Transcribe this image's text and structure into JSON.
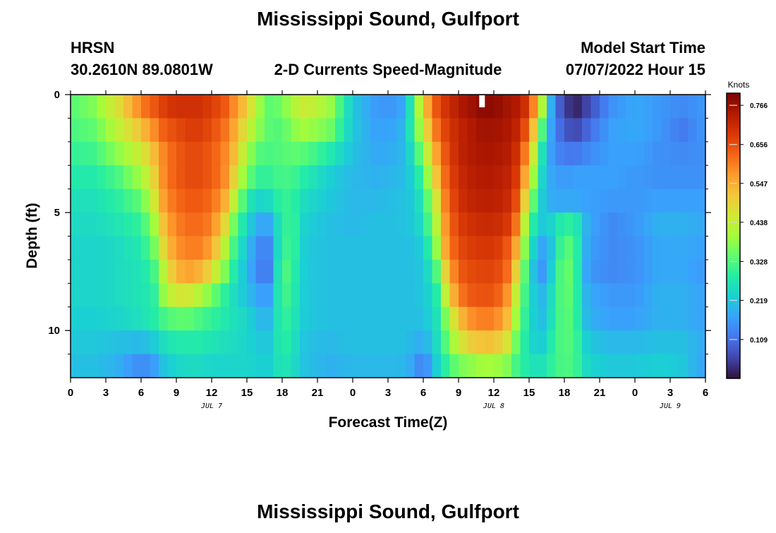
{
  "title": "Mississippi Sound, Gulfport",
  "bottom_title": "Mississippi Sound, Gulfport",
  "station_id": "HRSN",
  "location": "30.2610N  89.0801W",
  "plot_title": "2-D Currents Speed-Magnitude",
  "model_start_label": "Model Start Time",
  "model_start_value": "07/07/2022 Hour 15",
  "colors": {
    "scale": [
      "#30123b",
      "#4145ab",
      "#4675ed",
      "#39a2fc",
      "#1bcfd4",
      "#24eca6",
      "#61fc6c",
      "#a4fc3b",
      "#d1e834",
      "#f3c63a",
      "#fe9b2d",
      "#f36315",
      "#d93806",
      "#b11901",
      "#7a0403"
    ],
    "marker": "#ffffff"
  },
  "chart_data": {
    "type": "heatmap",
    "title": "2-D Currents Speed-Magnitude",
    "xlabel": "Forecast Time(Z)",
    "ylabel": "Depth (ft)",
    "xlim": [
      0,
      54
    ],
    "ylim": [
      0,
      12
    ],
    "x_ticks": [
      {
        "value": 0,
        "label": "0"
      },
      {
        "value": 3,
        "label": "3"
      },
      {
        "value": 6,
        "label": "6"
      },
      {
        "value": 9,
        "label": "9"
      },
      {
        "value": 12,
        "label": "12"
      },
      {
        "value": 15,
        "label": "15"
      },
      {
        "value": 18,
        "label": "18"
      },
      {
        "value": 21,
        "label": "21"
      },
      {
        "value": 24,
        "label": "0"
      },
      {
        "value": 27,
        "label": "3"
      },
      {
        "value": 30,
        "label": "6"
      },
      {
        "value": 33,
        "label": "9"
      },
      {
        "value": 36,
        "label": "12"
      },
      {
        "value": 39,
        "label": "15"
      },
      {
        "value": 42,
        "label": "18"
      },
      {
        "value": 45,
        "label": "21"
      },
      {
        "value": 48,
        "label": "0"
      },
      {
        "value": 51,
        "label": "3"
      },
      {
        "value": 54,
        "label": "6"
      }
    ],
    "y_ticks": [
      {
        "value": 0,
        "label": "0"
      },
      {
        "value": 5,
        "label": "5"
      },
      {
        "value": 10,
        "label": "10"
      }
    ],
    "day_labels": [
      {
        "value": 12,
        "label": "JUL 7"
      },
      {
        "value": 36,
        "label": "JUL 8"
      },
      {
        "value": 51,
        "label": "JUL 9"
      }
    ],
    "colorbar": {
      "label": "Knots",
      "min": 0.0,
      "max": 0.8,
      "ticks": [
        "0.766",
        "0.656",
        "0.547",
        "0.438",
        "0.328",
        "0.219",
        "0.109"
      ]
    },
    "current_time_marker": 35,
    "depths": [
      0.5,
      1.5,
      2.5,
      3.5,
      4.5,
      5.5,
      6.5,
      7.5,
      8.5,
      9.5,
      10.5,
      11.5
    ],
    "times": [
      0,
      2,
      4,
      6,
      7,
      8,
      9,
      10,
      11,
      12,
      13,
      14,
      15,
      16,
      17,
      18,
      19,
      20,
      22,
      24,
      26,
      28,
      29,
      30,
      31,
      32,
      33,
      34,
      35,
      36,
      37,
      38,
      39,
      40,
      41,
      42,
      43,
      44,
      46,
      48,
      50,
      52,
      54
    ],
    "rows": [
      [
        0.33,
        0.37,
        0.47,
        0.6,
        0.64,
        0.68,
        0.7,
        0.7,
        0.7,
        0.68,
        0.65,
        0.58,
        0.5,
        0.4,
        0.33,
        0.36,
        0.42,
        0.45,
        0.4,
        0.22,
        0.16,
        0.16,
        0.28,
        0.5,
        0.64,
        0.7,
        0.74,
        0.76,
        0.78,
        0.78,
        0.76,
        0.74,
        0.68,
        0.45,
        0.15,
        0.05,
        0.02,
        0.06,
        0.15,
        0.18,
        0.16,
        0.14,
        0.16
      ],
      [
        0.32,
        0.34,
        0.43,
        0.52,
        0.58,
        0.64,
        0.66,
        0.68,
        0.68,
        0.66,
        0.62,
        0.55,
        0.45,
        0.38,
        0.33,
        0.33,
        0.38,
        0.4,
        0.36,
        0.22,
        0.17,
        0.18,
        0.28,
        0.45,
        0.6,
        0.68,
        0.72,
        0.74,
        0.76,
        0.76,
        0.75,
        0.72,
        0.62,
        0.35,
        0.15,
        0.08,
        0.06,
        0.1,
        0.17,
        0.18,
        0.16,
        0.12,
        0.16
      ],
      [
        0.3,
        0.31,
        0.38,
        0.45,
        0.52,
        0.6,
        0.64,
        0.66,
        0.66,
        0.64,
        0.6,
        0.52,
        0.4,
        0.33,
        0.32,
        0.33,
        0.34,
        0.33,
        0.28,
        0.21,
        0.18,
        0.19,
        0.25,
        0.38,
        0.55,
        0.66,
        0.72,
        0.74,
        0.75,
        0.75,
        0.74,
        0.7,
        0.55,
        0.28,
        0.15,
        0.12,
        0.12,
        0.14,
        0.17,
        0.17,
        0.15,
        0.14,
        0.15
      ],
      [
        0.28,
        0.28,
        0.32,
        0.4,
        0.48,
        0.6,
        0.64,
        0.66,
        0.66,
        0.64,
        0.6,
        0.48,
        0.35,
        0.3,
        0.3,
        0.32,
        0.31,
        0.28,
        0.23,
        0.2,
        0.19,
        0.2,
        0.23,
        0.32,
        0.5,
        0.64,
        0.71,
        0.73,
        0.74,
        0.74,
        0.73,
        0.68,
        0.48,
        0.25,
        0.17,
        0.16,
        0.17,
        0.17,
        0.17,
        0.16,
        0.15,
        0.15,
        0.15
      ],
      [
        0.26,
        0.26,
        0.29,
        0.34,
        0.44,
        0.58,
        0.62,
        0.64,
        0.64,
        0.62,
        0.56,
        0.42,
        0.28,
        0.24,
        0.25,
        0.31,
        0.29,
        0.25,
        0.22,
        0.2,
        0.2,
        0.21,
        0.22,
        0.28,
        0.44,
        0.62,
        0.7,
        0.72,
        0.73,
        0.73,
        0.72,
        0.65,
        0.4,
        0.23,
        0.18,
        0.18,
        0.18,
        0.17,
        0.16,
        0.16,
        0.17,
        0.17,
        0.17
      ],
      [
        0.25,
        0.25,
        0.27,
        0.3,
        0.38,
        0.54,
        0.6,
        0.62,
        0.62,
        0.6,
        0.5,
        0.34,
        0.24,
        0.18,
        0.18,
        0.3,
        0.3,
        0.23,
        0.21,
        0.2,
        0.21,
        0.21,
        0.22,
        0.26,
        0.4,
        0.6,
        0.68,
        0.7,
        0.71,
        0.71,
        0.7,
        0.6,
        0.32,
        0.22,
        0.24,
        0.3,
        0.28,
        0.18,
        0.14,
        0.16,
        0.19,
        0.19,
        0.18
      ],
      [
        0.24,
        0.24,
        0.25,
        0.28,
        0.34,
        0.5,
        0.58,
        0.6,
        0.6,
        0.56,
        0.44,
        0.3,
        0.21,
        0.14,
        0.14,
        0.31,
        0.3,
        0.22,
        0.21,
        0.21,
        0.21,
        0.21,
        0.21,
        0.23,
        0.36,
        0.58,
        0.66,
        0.68,
        0.69,
        0.69,
        0.66,
        0.54,
        0.28,
        0.17,
        0.22,
        0.35,
        0.3,
        0.17,
        0.14,
        0.15,
        0.18,
        0.18,
        0.17
      ],
      [
        0.24,
        0.24,
        0.25,
        0.27,
        0.3,
        0.44,
        0.54,
        0.56,
        0.54,
        0.48,
        0.38,
        0.27,
        0.2,
        0.13,
        0.13,
        0.34,
        0.29,
        0.22,
        0.21,
        0.21,
        0.21,
        0.21,
        0.21,
        0.22,
        0.3,
        0.52,
        0.64,
        0.66,
        0.67,
        0.67,
        0.64,
        0.48,
        0.25,
        0.15,
        0.24,
        0.37,
        0.3,
        0.16,
        0.14,
        0.15,
        0.18,
        0.18,
        0.16
      ],
      [
        0.24,
        0.24,
        0.25,
        0.27,
        0.28,
        0.4,
        0.46,
        0.46,
        0.42,
        0.36,
        0.3,
        0.25,
        0.21,
        0.17,
        0.17,
        0.33,
        0.28,
        0.22,
        0.21,
        0.21,
        0.21,
        0.21,
        0.21,
        0.22,
        0.26,
        0.46,
        0.6,
        0.64,
        0.65,
        0.65,
        0.6,
        0.42,
        0.25,
        0.19,
        0.26,
        0.36,
        0.3,
        0.18,
        0.16,
        0.16,
        0.19,
        0.19,
        0.17
      ],
      [
        0.23,
        0.23,
        0.24,
        0.26,
        0.28,
        0.32,
        0.34,
        0.34,
        0.32,
        0.3,
        0.28,
        0.26,
        0.24,
        0.2,
        0.2,
        0.31,
        0.27,
        0.22,
        0.21,
        0.21,
        0.21,
        0.21,
        0.21,
        0.21,
        0.25,
        0.38,
        0.52,
        0.58,
        0.6,
        0.6,
        0.55,
        0.38,
        0.25,
        0.2,
        0.27,
        0.35,
        0.3,
        0.19,
        0.17,
        0.17,
        0.19,
        0.19,
        0.17
      ],
      [
        0.22,
        0.22,
        0.21,
        0.2,
        0.22,
        0.26,
        0.28,
        0.28,
        0.28,
        0.27,
        0.26,
        0.25,
        0.24,
        0.22,
        0.22,
        0.3,
        0.26,
        0.21,
        0.2,
        0.21,
        0.21,
        0.21,
        0.2,
        0.18,
        0.24,
        0.34,
        0.45,
        0.5,
        0.52,
        0.52,
        0.48,
        0.34,
        0.25,
        0.22,
        0.29,
        0.34,
        0.31,
        0.22,
        0.2,
        0.2,
        0.21,
        0.21,
        0.18
      ],
      [
        0.21,
        0.21,
        0.19,
        0.14,
        0.16,
        0.22,
        0.24,
        0.25,
        0.25,
        0.24,
        0.24,
        0.24,
        0.24,
        0.23,
        0.23,
        0.28,
        0.25,
        0.21,
        0.19,
        0.2,
        0.2,
        0.2,
        0.18,
        0.12,
        0.22,
        0.3,
        0.36,
        0.38,
        0.4,
        0.4,
        0.38,
        0.31,
        0.27,
        0.26,
        0.3,
        0.33,
        0.31,
        0.24,
        0.22,
        0.22,
        0.23,
        0.22,
        0.17
      ]
    ]
  }
}
